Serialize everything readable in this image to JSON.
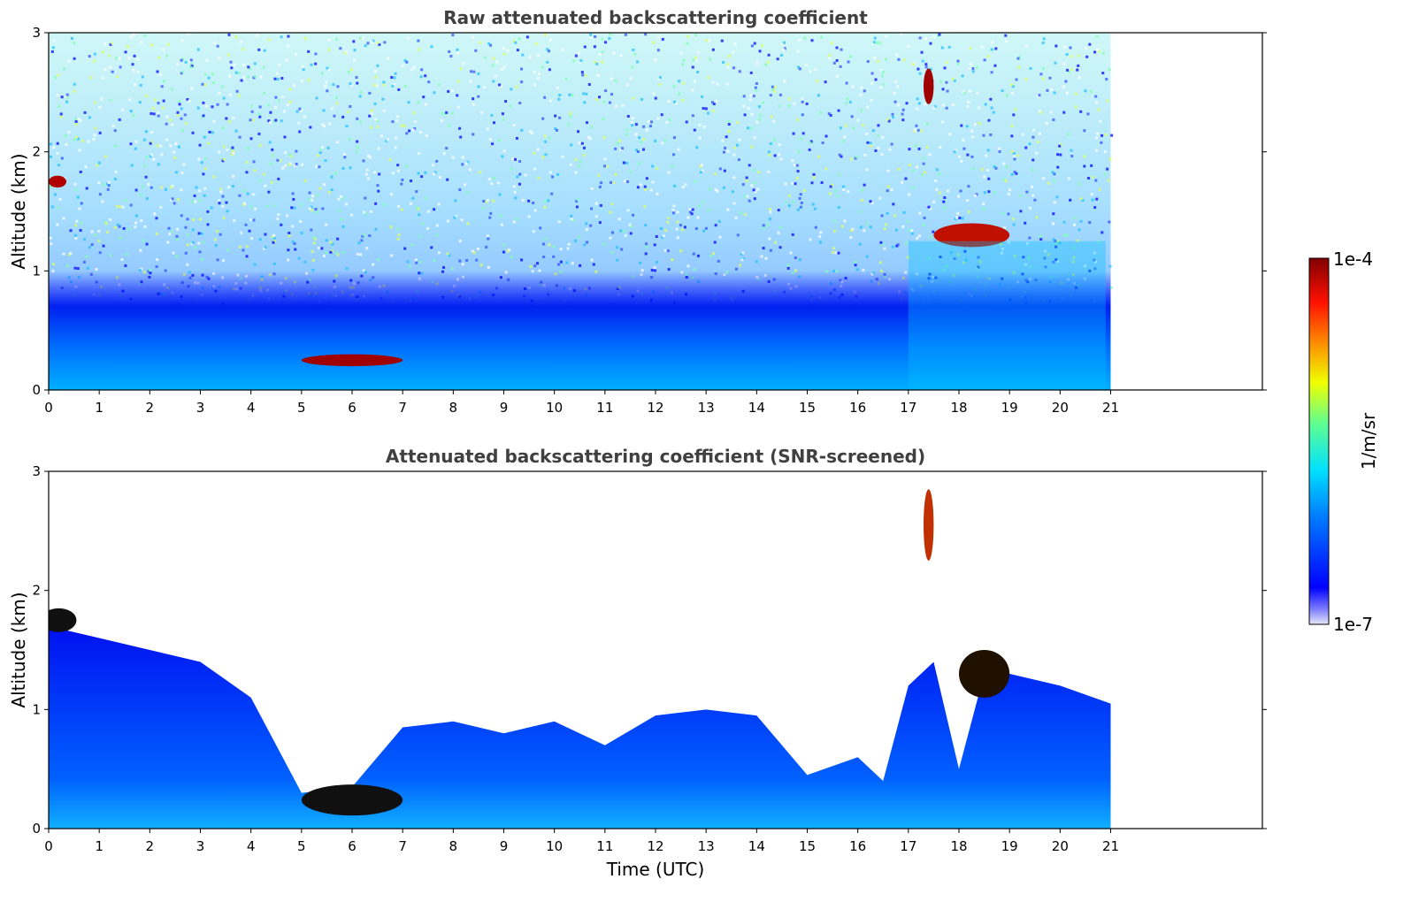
{
  "chart_data": [
    {
      "type": "heatmap",
      "title": "Raw attenuated backscattering coefficient",
      "xlabel": "",
      "ylabel": "Altitude (km)",
      "xlim": [
        0,
        24
      ],
      "ylim": [
        0,
        3
      ],
      "x_ticks": [
        "0",
        "1",
        "2",
        "3",
        "4",
        "5",
        "6",
        "7",
        "8",
        "9",
        "10",
        "11",
        "12",
        "13",
        "14",
        "15",
        "16",
        "17",
        "18",
        "19",
        "20",
        "21"
      ],
      "y_ticks": [
        "0",
        "1",
        "2",
        "3"
      ],
      "data_extent_hours": [
        0,
        21
      ],
      "features": [
        {
          "name": "boundary layer",
          "altitude_km": [
            0,
            0.4
          ],
          "time_utc": [
            0,
            21
          ]
        },
        {
          "name": "strong layer",
          "altitude_km": [
            0.2,
            0.3
          ],
          "time_utc": [
            5,
            7
          ]
        },
        {
          "name": "elevated layer",
          "altitude_km": [
            1.7,
            1.8
          ],
          "time_utc": [
            0,
            0.35
          ]
        },
        {
          "name": "cloud",
          "altitude_km": [
            1.2,
            1.4
          ],
          "time_utc": [
            17.5,
            19
          ]
        },
        {
          "name": "cloud",
          "altitude_km": [
            2.4,
            2.7
          ],
          "time_utc": [
            17.3,
            17.5
          ]
        }
      ]
    },
    {
      "type": "heatmap",
      "title": "Attenuated backscattering coefficient (SNR-screened)",
      "xlabel": "Time (UTC)",
      "ylabel": "Altitude (km)",
      "xlim": [
        0,
        24
      ],
      "ylim": [
        0,
        3
      ],
      "x_ticks": [
        "0",
        "1",
        "2",
        "3",
        "4",
        "5",
        "6",
        "7",
        "8",
        "9",
        "10",
        "11",
        "12",
        "13",
        "14",
        "15",
        "16",
        "17",
        "18",
        "19",
        "20",
        "21"
      ],
      "y_ticks": [
        "0",
        "1",
        "2",
        "3"
      ],
      "data_extent_hours": [
        0,
        21
      ],
      "screened_top_km": [
        [
          0,
          1.7
        ],
        [
          1,
          1.6
        ],
        [
          2,
          1.5
        ],
        [
          3,
          1.4
        ],
        [
          4,
          1.1
        ],
        [
          5,
          0.3
        ],
        [
          6,
          0.35
        ],
        [
          7,
          0.85
        ],
        [
          8,
          0.9
        ],
        [
          9,
          0.8
        ],
        [
          10,
          0.9
        ],
        [
          11,
          0.7
        ],
        [
          12,
          0.95
        ],
        [
          13,
          1.0
        ],
        [
          14,
          0.95
        ],
        [
          15,
          0.45
        ],
        [
          16,
          0.6
        ],
        [
          16.5,
          0.4
        ],
        [
          17,
          1.2
        ],
        [
          17.5,
          1.4
        ],
        [
          18,
          0.5
        ],
        [
          18.5,
          1.3
        ],
        [
          19,
          1.3
        ],
        [
          20,
          1.2
        ],
        [
          21,
          1.05
        ]
      ]
    }
  ],
  "colorbar": {
    "max_label": "1e-4",
    "min_label": "1e-7",
    "unit": "1/m/sr",
    "colormap": "jet"
  },
  "colors": {
    "title": "#404040",
    "axes": "#000000",
    "background": "#ffffff"
  }
}
